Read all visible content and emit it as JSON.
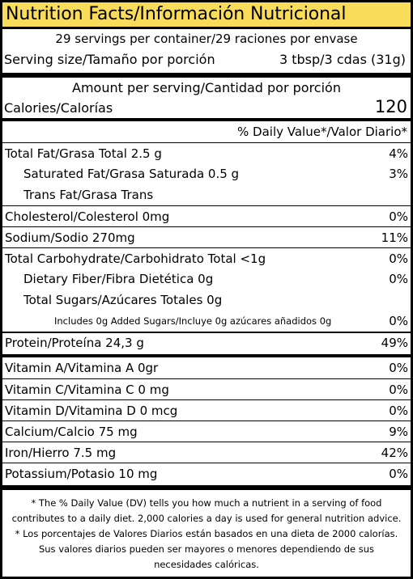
{
  "title": "Nutrition Facts/Información Nutricional",
  "servings": "29 servings per container/29 raciones por envase",
  "serving_size_label": "Serving size/Tamaño por porción",
  "serving_size_value": "3 tbsp/3 cdas (31g)",
  "amount_per_serving": "Amount per serving/Cantidad por porción",
  "calories_label": "Calories/Calorías",
  "calories_value": "120",
  "dv_header": "% Daily Value*/Valor Diario*",
  "nutrients": [
    {
      "label": "Total Fat/Grasa Total 2.5 g",
      "dv": "4%"
    },
    {
      "label": "Saturated Fat/Grasa Saturada 0.5 g",
      "dv": "3%"
    },
    {
      "label": "Trans Fat/Grasa Trans",
      "dv": ""
    },
    {
      "label": "Cholesterol/Colesterol 0mg",
      "dv": "0%"
    },
    {
      "label": "Sodium/Sodio 270mg",
      "dv": "11%"
    },
    {
      "label": "Total Carbohydrate/Carbohidrato Total <1g",
      "dv": "0%"
    },
    {
      "label": "Dietary Fiber/Fibra Dietética 0g",
      "dv": "0%"
    },
    {
      "label": "Total Sugars/Azúcares Totales 0g",
      "dv": ""
    },
    {
      "label": "Includes 0g Added Sugars/Incluye 0g azúcares añadidos 0g",
      "dv": "0%"
    },
    {
      "label": "Protein/Proteína 24,3 g",
      "dv": "49%"
    }
  ],
  "vitamins": [
    {
      "label": "Vitamin A/Vitamina A 0gr",
      "dv": "0%"
    },
    {
      "label": "Vitamin C/Vitamina C 0 mg",
      "dv": "0%"
    },
    {
      "label": "Vitamin D/Vitamina D 0 mcg",
      "dv": "0%"
    },
    {
      "label": "Calcium/Calcio 75 mg",
      "dv": "9%"
    },
    {
      "label": "Iron/Hierro 7.5 mg",
      "dv": "42%"
    },
    {
      "label": "Potassium/Potasio 10 mg",
      "dv": "0%"
    }
  ],
  "footnote": [
    "* The % Daily Value (DV) tells you how much a nutrient in a serving of food",
    "contributes to a daily diet. 2,000 calories a day is used for general nutrition advice.",
    "* Los porcentajes de Valores Diarios están basados en una dieta de 2000 calorías.",
    "Sus valores diarios pueden ser mayores o menores dependiendo de sus",
    "necesidades calóricas."
  ],
  "colors": {
    "title_bg": "#f9dd5a",
    "border": "#000000"
  }
}
